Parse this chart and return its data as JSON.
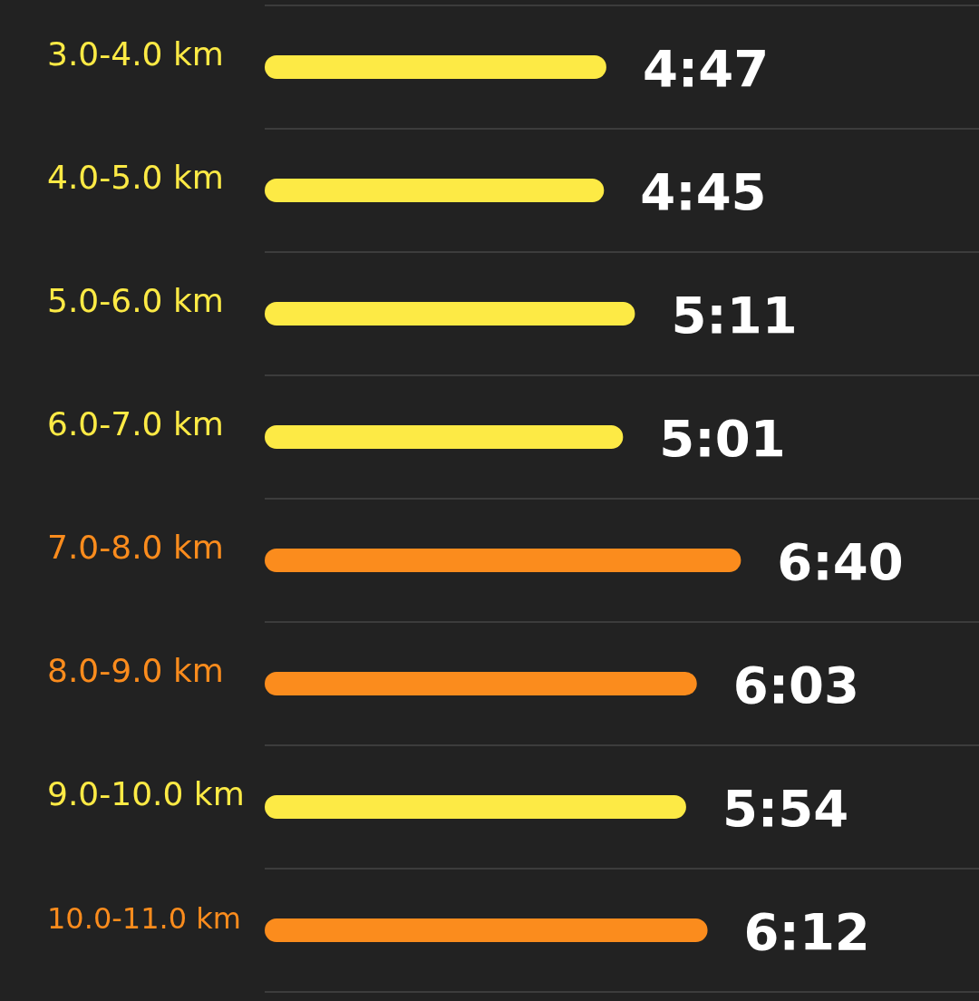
{
  "chart_data": {
    "type": "bar",
    "orientation": "horizontal",
    "categories": [
      "3.0-4.0 km",
      "4.0-5.0 km",
      "5.0-6.0 km",
      "6.0-7.0 km",
      "7.0-8.0 km",
      "8.0-9.0 km",
      "9.0-10.0 km",
      "10.0-11.0 km"
    ],
    "values": [
      4.783,
      4.75,
      5.183,
      5.017,
      6.667,
      6.05,
      5.9,
      6.2
    ],
    "value_labels": [
      "4:47",
      "4:45",
      "5:11",
      "5:01",
      "6:40",
      "6:03",
      "5:54",
      "6:12"
    ],
    "colors": [
      "#fdea45",
      "#fdea45",
      "#fdea45",
      "#fdea45",
      "#fb8c1d",
      "#fb8c1d",
      "#fdea45",
      "#fb8c1d"
    ],
    "xlim": [
      0,
      10
    ],
    "tick_labels": "y",
    "grid": "y"
  }
}
